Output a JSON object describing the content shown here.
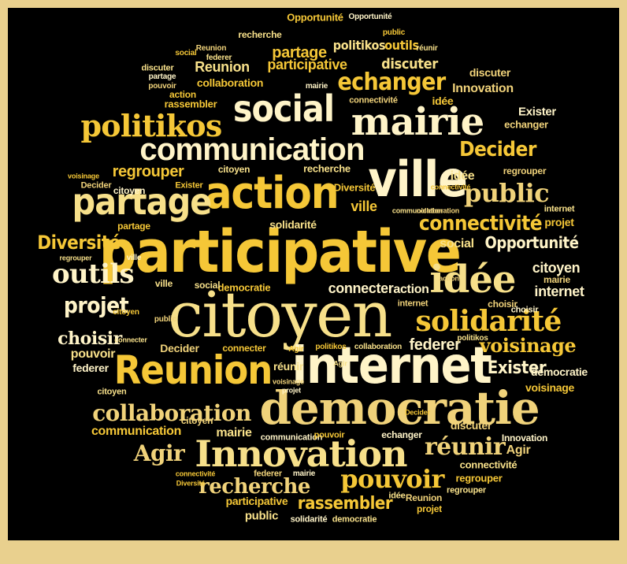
{
  "colors": {
    "frame": "#e9d08e",
    "background": "#000000",
    "gold": "#f5c737",
    "cream": "#fff4c8"
  },
  "words": {
    "citoyen": "citoyen",
    "participative": "participative",
    "internet": "internet",
    "democratie": "democratie",
    "innovation": "Innovation",
    "ville": "ville",
    "mairie": "mairie",
    "social": "social",
    "action": "action",
    "communication": "communication",
    "politikos": "politikos",
    "partage": "partage",
    "reunion": "Reunion",
    "idee": "idée",
    "solidarite": "solidarité",
    "outils": "outils",
    "projet": "projet",
    "diversite": "Diversité",
    "echanger": "echanger",
    "public": "public",
    "connectivite": "connectivité",
    "collaboration": "collaboration",
    "pouvoir": "pouvoir",
    "recherche": "recherche",
    "rassembler": "rassembler",
    "regrouper": "regrouper",
    "reunir": "réunir",
    "decider": "Decider",
    "opportunite": "Opportunité",
    "voisinage": "voisinage",
    "choisir": "choisir",
    "exister": "Exister",
    "agir": "Agir",
    "federer": "federer",
    "connecter": "connecter",
    "discuter": "discuter"
  }
}
